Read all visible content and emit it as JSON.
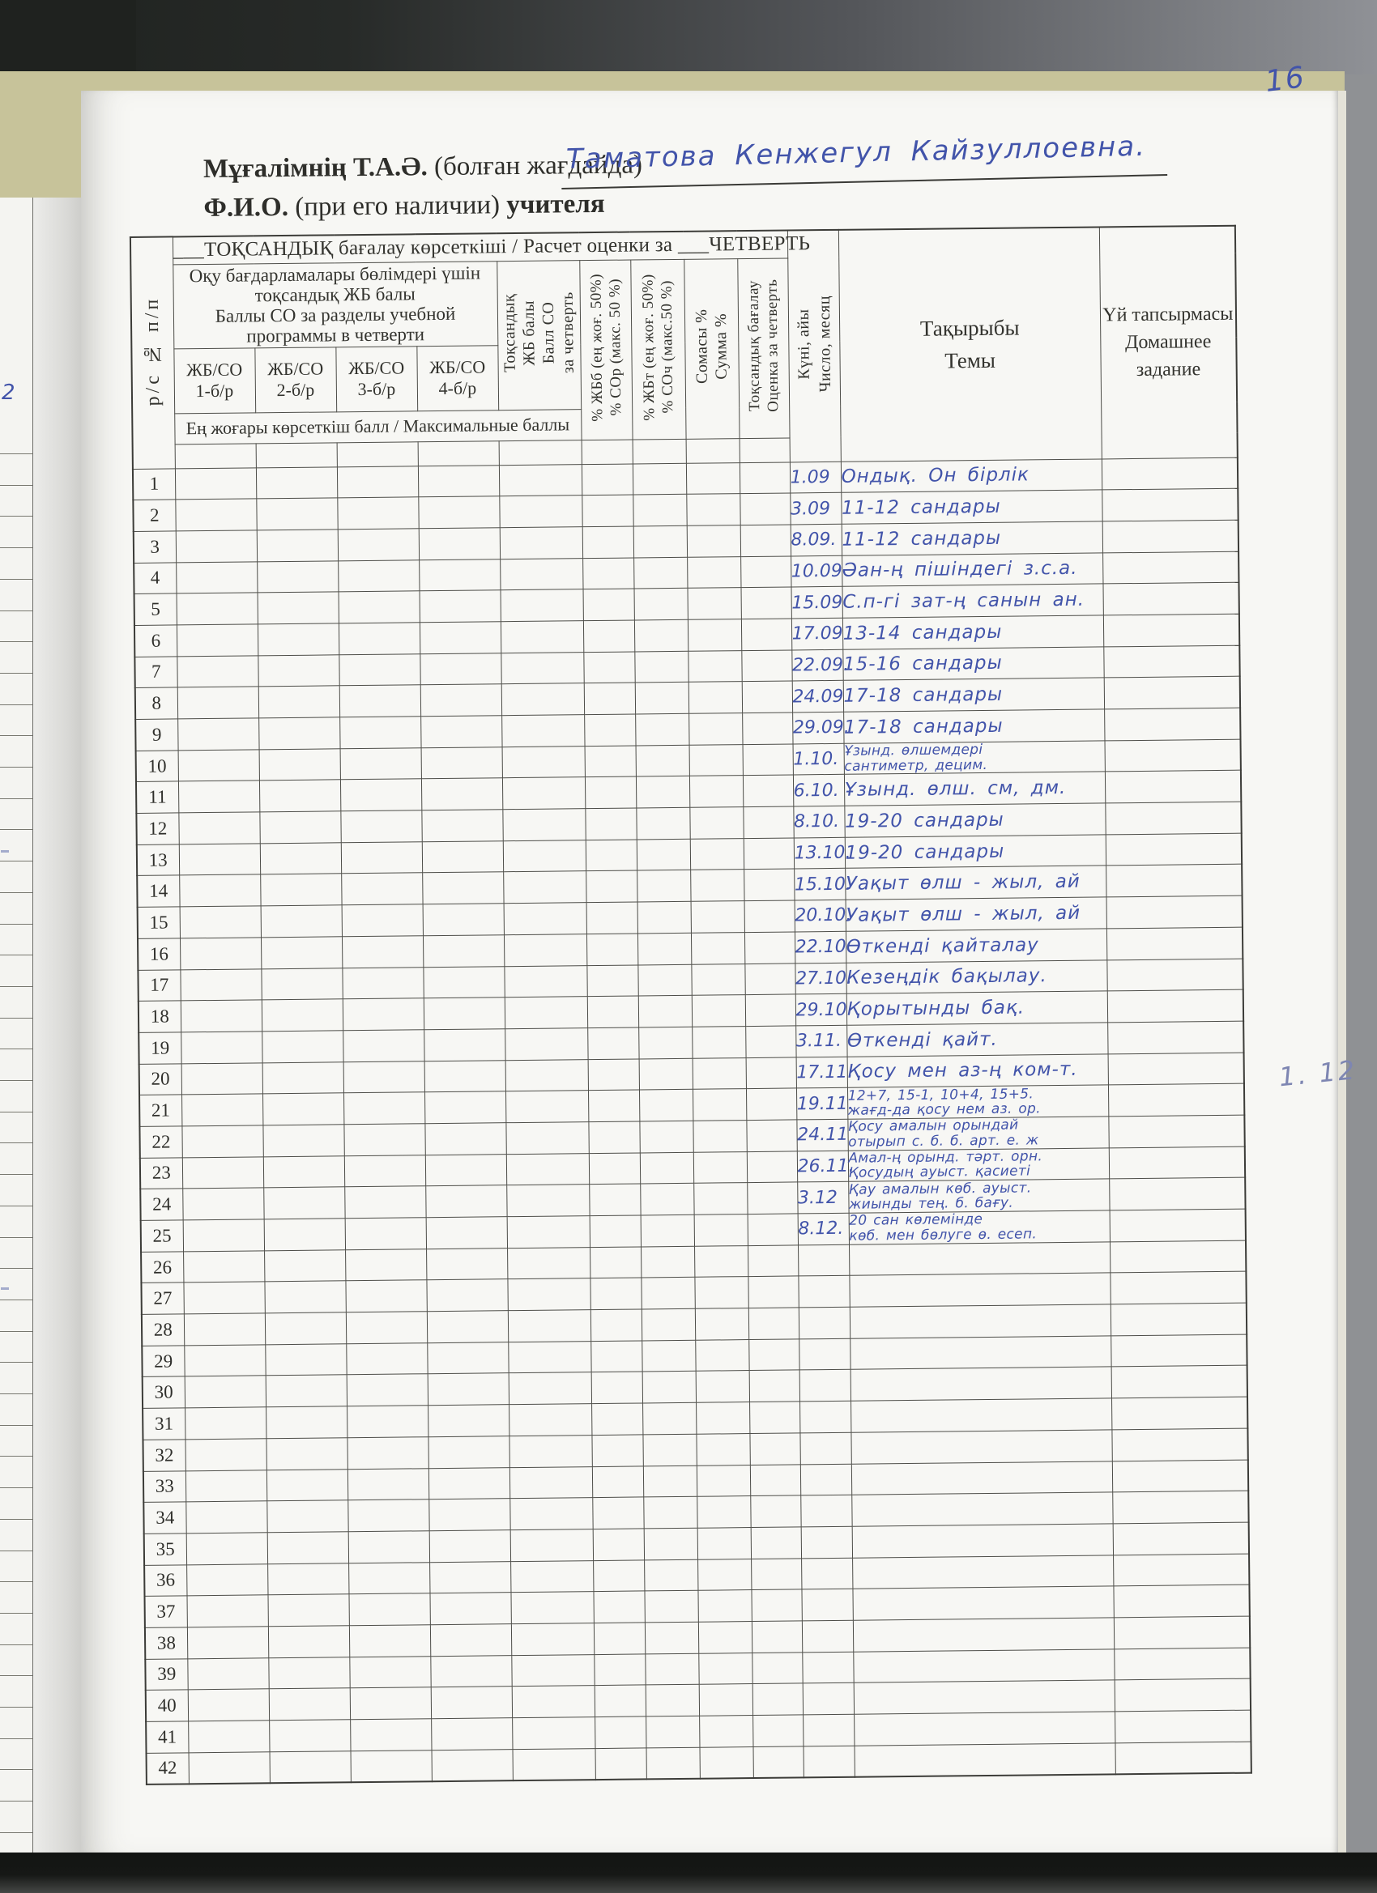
{
  "page": {
    "page_number": "16",
    "margin_note": "1. 12",
    "left_margin_fragment": "2"
  },
  "header": {
    "teacher_label_kk_bold": "Мұғалімнің Т.А.Ә.",
    "teacher_label_kk_paren": " (болған жағдайда)",
    "teacher_name_handwritten": "Таматова Кенжегул Кайзуллоевна.",
    "teacher_label_ru_bold": "Ф.И.О.",
    "teacher_label_ru_paren": " (при его наличии) ",
    "teacher_label_ru_tail": "учителя"
  },
  "table": {
    "title": "___ТОҚСАНДЫҚ бағалау көрсеткіші / Расчет оценки за ___ЧЕТВЕРТЬ",
    "col_num": "р/с  №  п/п",
    "group_header": "Оқу бағдарламалары бөлімдері үшін\nтоқсандық ЖБ балы\nБаллы СО за разделы учебной\nпрограммы в четверти",
    "sub_cols": [
      "ЖБ/СО\n1-б/р",
      "ЖБ/СО\n2-б/р",
      "ЖБ/СО\n3-б/р",
      "ЖБ/СО\n4-б/р"
    ],
    "vert_cols": [
      "Тоқсандық\nЖБ балы\nБалл СО\nза четверть",
      "% ЖБб (ең жоғ. 50%)\n% СОр (макс. 50 %)",
      "% ЖБт (ең жоғ. 50%)\n% СОч (макс.50 %)",
      "Сомасы %\nСумма %",
      "Тоқсандық бағалау\nОценка за четверть",
      "Күні, айы\nЧисло, месяц"
    ],
    "max_row_label": "Ең жоғары көрсеткіш балл / Максимальные баллы",
    "topic_col": "Тақырыбы\nТемы",
    "homework_col": "Үй тапсырмасы\nДомашнее\nзадание",
    "rows": [
      {
        "num": "1",
        "date": "1.09",
        "topic": "Ондық. Он бірлік"
      },
      {
        "num": "2",
        "date": "3.09",
        "topic": "11-12 сандары"
      },
      {
        "num": "3",
        "date": "8.09.",
        "topic": "11-12 сандары"
      },
      {
        "num": "4",
        "date": "10.09",
        "topic": "Әан-ң пішіндегі з.с.а."
      },
      {
        "num": "5",
        "date": "15.09",
        "topic": "С.п-гі зат-ң санын ан."
      },
      {
        "num": "6",
        "date": "17.09",
        "topic": "13-14 сандары"
      },
      {
        "num": "7",
        "date": "22.09.",
        "topic": "15-16 сандары"
      },
      {
        "num": "8",
        "date": "24.09",
        "topic": "17-18 сандары"
      },
      {
        "num": "9",
        "date": "29.09.",
        "topic": "17-18 сандары"
      },
      {
        "num": "10",
        "date": "1.10.",
        "topic": "Ұзынд. өлшемдері\nсантиметр, децим."
      },
      {
        "num": "11",
        "date": "6.10.",
        "topic": "Ұзынд. өлш. см, дм."
      },
      {
        "num": "12",
        "date": "8.10.",
        "topic": "19-20 сандары"
      },
      {
        "num": "13",
        "date": "13.10.",
        "topic": "19-20 сандары"
      },
      {
        "num": "14",
        "date": "15.10.",
        "topic": "Уақыт өлш - жыл, ай"
      },
      {
        "num": "15",
        "date": "20.10.",
        "topic": "Уақыт өлш - жыл, ай"
      },
      {
        "num": "16",
        "date": "22.10",
        "topic": "Өткенді қайталау"
      },
      {
        "num": "17",
        "date": "27.10.",
        "topic": "Кезеңдік бақылау."
      },
      {
        "num": "18",
        "date": "29.10",
        "topic": "Қорытынды бақ."
      },
      {
        "num": "19",
        "date": "3.11.",
        "topic": "Өткенді қайт."
      },
      {
        "num": "20",
        "date": "17.11.",
        "topic": "Қосу мен аз-ң ком-т."
      },
      {
        "num": "21",
        "date": "19.11.",
        "topic": "12+7, 15-1, 10+4, 15+5.\nжағд-да қосу нем аз. ор."
      },
      {
        "num": "22",
        "date": "24.11",
        "topic": "Қосу амалын орындай\nотырып с. б. б. арт. е. ж"
      },
      {
        "num": "23",
        "date": "26.11.",
        "topic": "Амал-ң орынд. тәрт. орн.\nҚосудың ауыст. қасиеті"
      },
      {
        "num": "24",
        "date": "3.12",
        "topic": "Қау амалын көб. ауыст.\nжиынды тең. б. бағу."
      },
      {
        "num": "25",
        "date": "8.12.",
        "topic": "20 сан көлемінде\nкөб. мен бөлуге ө. есеп."
      },
      {
        "num": "26",
        "date": "",
        "topic": ""
      },
      {
        "num": "27",
        "date": "",
        "topic": ""
      },
      {
        "num": "28",
        "date": "",
        "topic": ""
      },
      {
        "num": "29",
        "date": "",
        "topic": ""
      },
      {
        "num": "30",
        "date": "",
        "topic": ""
      },
      {
        "num": "31",
        "date": "",
        "topic": ""
      },
      {
        "num": "32",
        "date": "",
        "topic": ""
      },
      {
        "num": "33",
        "date": "",
        "topic": ""
      },
      {
        "num": "34",
        "date": "",
        "topic": ""
      },
      {
        "num": "35",
        "date": "",
        "topic": ""
      },
      {
        "num": "36",
        "date": "",
        "topic": ""
      },
      {
        "num": "37",
        "date": "",
        "topic": ""
      },
      {
        "num": "38",
        "date": "",
        "topic": ""
      },
      {
        "num": "39",
        "date": "",
        "topic": ""
      },
      {
        "num": "40",
        "date": "",
        "topic": ""
      },
      {
        "num": "41",
        "date": "",
        "topic": ""
      },
      {
        "num": "42",
        "date": "",
        "topic": ""
      }
    ]
  }
}
